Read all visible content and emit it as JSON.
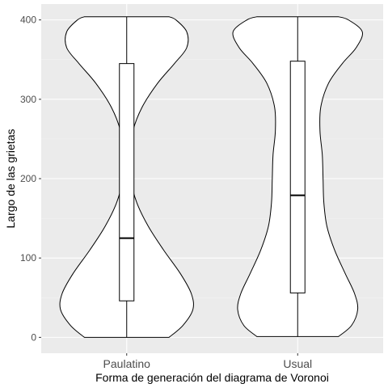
{
  "chart_data": {
    "type": "violin",
    "xlabel": "Forma de generación del diagrama de Voronoi",
    "ylabel": "Largo de las grietas",
    "ylim": [
      -20,
      420
    ],
    "yticks": [
      0,
      100,
      200,
      300,
      400
    ],
    "categories": [
      "Paulatino",
      "Usual"
    ],
    "grid": true,
    "colors": {
      "panel": "#EBEBEB",
      "grid_major": "#FFFFFF",
      "grid_minor": "#F2F2F2",
      "violin_fill": "#FFFFFF",
      "stroke": "#000000"
    },
    "boxplots": [
      {
        "category": "Paulatino",
        "min": 0,
        "q1": 46,
        "median": 125,
        "q3": 345,
        "max": 404
      },
      {
        "category": "Usual",
        "min": 1,
        "q1": 56,
        "median": 179,
        "q3": 348,
        "max": 404
      }
    ],
    "violins": [
      {
        "category": "Paulatino",
        "y_min": 0,
        "y_max": 404,
        "density_profile": [
          [
            0,
            0.55
          ],
          [
            15,
            0.73
          ],
          [
            35,
            0.86
          ],
          [
            55,
            0.84
          ],
          [
            80,
            0.7
          ],
          [
            110,
            0.48
          ],
          [
            140,
            0.28
          ],
          [
            170,
            0.13
          ],
          [
            200,
            0.05
          ],
          [
            230,
            0.04
          ],
          [
            260,
            0.08
          ],
          [
            290,
            0.2
          ],
          [
            320,
            0.4
          ],
          [
            345,
            0.62
          ],
          [
            365,
            0.78
          ],
          [
            385,
            0.78
          ],
          [
            400,
            0.64
          ],
          [
            404,
            0.55
          ]
        ]
      },
      {
        "category": "Usual",
        "y_min": 1,
        "y_max": 404,
        "density_profile": [
          [
            1,
            0.53
          ],
          [
            15,
            0.7
          ],
          [
            35,
            0.78
          ],
          [
            55,
            0.74
          ],
          [
            80,
            0.62
          ],
          [
            110,
            0.48
          ],
          [
            140,
            0.38
          ],
          [
            170,
            0.34
          ],
          [
            200,
            0.33
          ],
          [
            230,
            0.32
          ],
          [
            260,
            0.29
          ],
          [
            290,
            0.3
          ],
          [
            320,
            0.4
          ],
          [
            345,
            0.58
          ],
          [
            365,
            0.76
          ],
          [
            385,
            0.84
          ],
          [
            400,
            0.66
          ],
          [
            404,
            0.53
          ]
        ]
      }
    ]
  }
}
